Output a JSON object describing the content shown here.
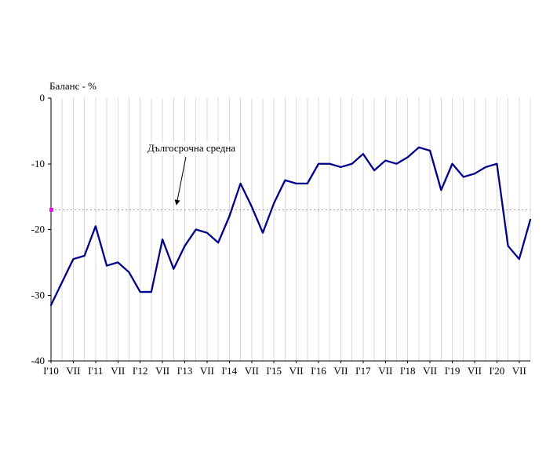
{
  "chart_data": {
    "type": "line",
    "title": "Баланс - %",
    "annotation": "Дългосрочна средна",
    "x_labels": [
      "I'10",
      "VII",
      "I'11",
      "VII",
      "I'12",
      "VII",
      "I'13",
      "VII",
      "I'14",
      "VII",
      "I'15",
      "VII",
      "I'16",
      "VII",
      "I'17",
      "VII",
      "I'18",
      "VII",
      "I'19",
      "VII",
      "I'20",
      "VII"
    ],
    "x_label_step": 2,
    "values": [
      -31.5,
      -28,
      -24.5,
      -24,
      -19.5,
      -25.5,
      -25,
      -26.5,
      -29.5,
      -29.5,
      -21.5,
      -26,
      -22.5,
      -20,
      -20.5,
      -22,
      -18,
      -13,
      -16.5,
      -20.5,
      -16,
      -12.5,
      -13,
      -13,
      -10,
      -10,
      -10.5,
      -10,
      -8.5,
      -11,
      -9.5,
      -10,
      -9,
      -7.5,
      -8,
      -14,
      -10,
      -12,
      -11.5,
      -10.5,
      -10,
      -22.5,
      -24.5,
      -18.5
    ],
    "ylim": [
      -40,
      0
    ],
    "yticks": [
      0,
      -10,
      -20,
      -30,
      -40
    ],
    "long_term_average": -17,
    "grid": "on",
    "colors": {
      "line": "#00008B",
      "average": "#999999",
      "marker": "#FF00FF",
      "grid": "#D9D9D9",
      "axis": "#000000"
    }
  }
}
